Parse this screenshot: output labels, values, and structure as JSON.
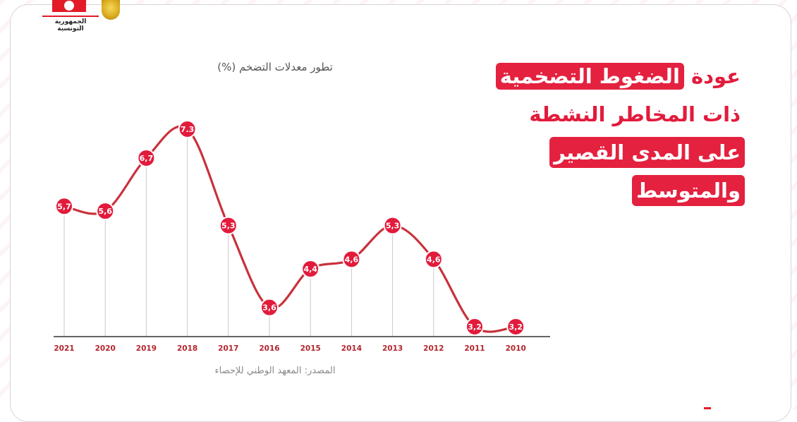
{
  "branding": {
    "flag_icon": "tunisia-flag-icon",
    "seal_icon": "coat-of-arms-icon",
    "country_name": "الجمهورية التونسية"
  },
  "headline": {
    "lines": [
      {
        "prefix": "عودة",
        "boxed": "الضغوط التضخمية"
      },
      {
        "text": "ذات المخاطر النشطة"
      },
      {
        "boxed": "على المدى القصير"
      },
      {
        "boxed": "والمتوسط"
      }
    ],
    "accent_color": "#e4213f"
  },
  "chart_data": {
    "type": "line",
    "title": "تطور معدلات التضخم  (%)",
    "source": "المصدر: المعهد الوطني للإحصاء",
    "categories": [
      "2021",
      "2020",
      "2019",
      "2018",
      "2017",
      "2016",
      "2015",
      "2014",
      "2013",
      "2012",
      "2011",
      "2010"
    ],
    "values": [
      5.7,
      5.6,
      6.7,
      7.3,
      5.3,
      3.6,
      4.4,
      4.6,
      5.3,
      4.6,
      3.2,
      3.2
    ],
    "labels": [
      "5,7",
      "5,6",
      "6,7",
      "7.3",
      "5,3",
      "3,6",
      "4,4",
      "4,6",
      "5,3",
      "4,6",
      "3,2",
      "3,2"
    ],
    "ylim": [
      0,
      9
    ],
    "grid": false,
    "line_color": "#c8323c",
    "marker_color": "#e21b3c"
  }
}
